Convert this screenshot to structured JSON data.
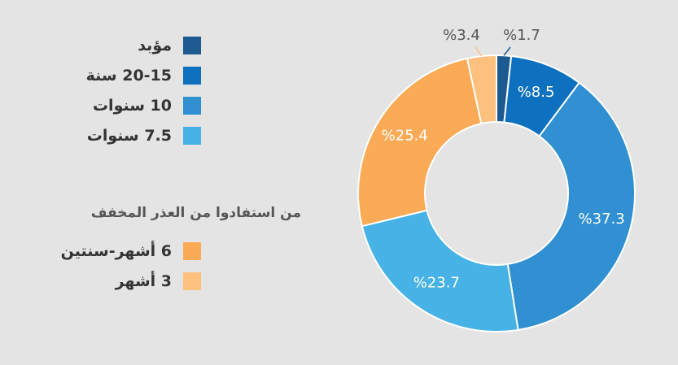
{
  "chart_data": {
    "type": "pie",
    "donut": true,
    "categories": [
      "مؤبد",
      "20-15 سنة",
      "10 سنوات",
      "7.5 سنوات",
      "6 أشهر-سنتين",
      "3 أشهر"
    ],
    "values": [
      1.7,
      8.5,
      37.3,
      23.7,
      25.4,
      3.4
    ],
    "slice_labels": [
      "%1.7",
      "%8.5",
      "%37.3",
      "%23.7",
      "%25.4",
      "%3.4"
    ],
    "colors": [
      "#1c5a91",
      "#0e71c0",
      "#3090d2",
      "#46b2e6",
      "#fbaa55",
      "#fdc07d"
    ],
    "label_colors": [
      "#555555",
      "#ffffff",
      "#ffffff",
      "#ffffff",
      "#ffffff",
      "#555555"
    ],
    "legend_group_heading": "من استفادوا من العذر المخفف",
    "legend_placement": "left"
  }
}
